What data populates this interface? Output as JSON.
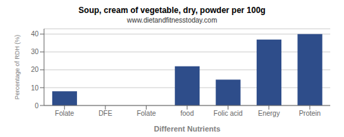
{
  "chart_data": {
    "type": "bar",
    "title": "Soup, cream of vegetable, dry, powder per 100g",
    "subtitle": "www.dietandfitnesstoday.com",
    "xlabel": "Different Nutrients",
    "ylabel": "Percentage of RDH (%)",
    "categories": [
      "Folate",
      "DFE",
      "Folate",
      "food",
      "Folic acid",
      "Energy",
      "Protein"
    ],
    "values": [
      8,
      0,
      0,
      22,
      14.5,
      37,
      40
    ],
    "color": "#2e4d8a",
    "ylim": [
      0,
      43
    ],
    "yticks": [
      0,
      10,
      20,
      30,
      40
    ],
    "grid": true
  }
}
